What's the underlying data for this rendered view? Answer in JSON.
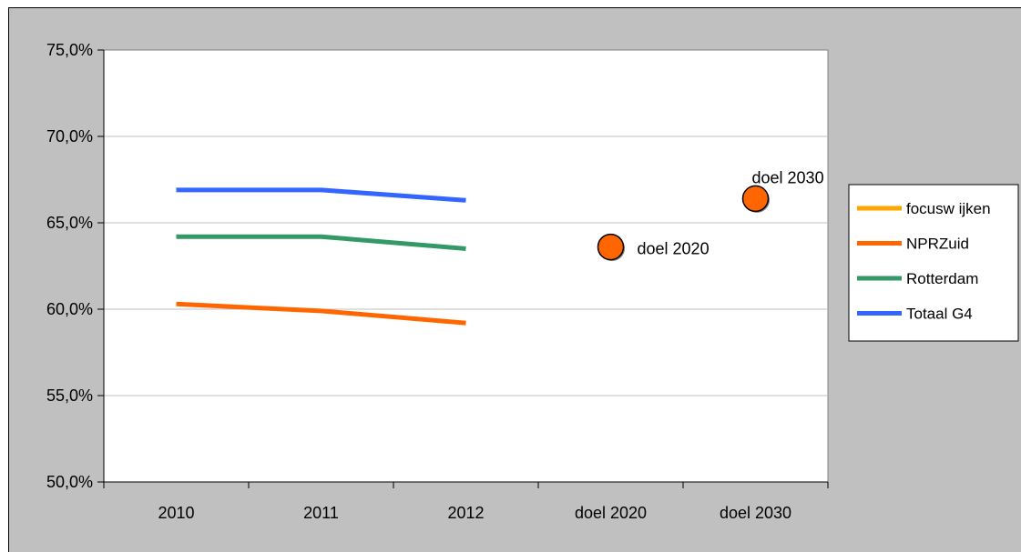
{
  "chart_data": {
    "type": "line",
    "title": "",
    "categories": [
      "2010",
      "2011",
      "2012",
      "doel 2020",
      "doel 2030"
    ],
    "yticks": [
      "50,0%",
      "55,0%",
      "60,0%",
      "65,0%",
      "70,0%",
      "75,0%"
    ],
    "ylim": [
      50,
      75
    ],
    "grid": true,
    "legend_position": "right",
    "series": [
      {
        "name": "focusw ijken",
        "color": "#ffa500",
        "values": [
          null,
          null,
          null,
          null,
          null
        ]
      },
      {
        "name": "NPRZuid",
        "color": "#ff6600",
        "values": [
          60.3,
          59.9,
          59.2,
          null,
          null
        ]
      },
      {
        "name": "Rotterdam",
        "color": "#339966",
        "values": [
          64.2,
          64.2,
          63.5,
          null,
          null
        ]
      },
      {
        "name": "Totaal G4",
        "color": "#3366ff",
        "values": [
          66.9,
          66.9,
          66.3,
          null,
          null
        ]
      }
    ],
    "targets": [
      {
        "label": "doel 2020",
        "category_index": 3,
        "value": 63.6,
        "color": "#ff6600"
      },
      {
        "label": "doel 2030",
        "category_index": 4,
        "value": 66.4,
        "color": "#ff6600"
      }
    ]
  }
}
